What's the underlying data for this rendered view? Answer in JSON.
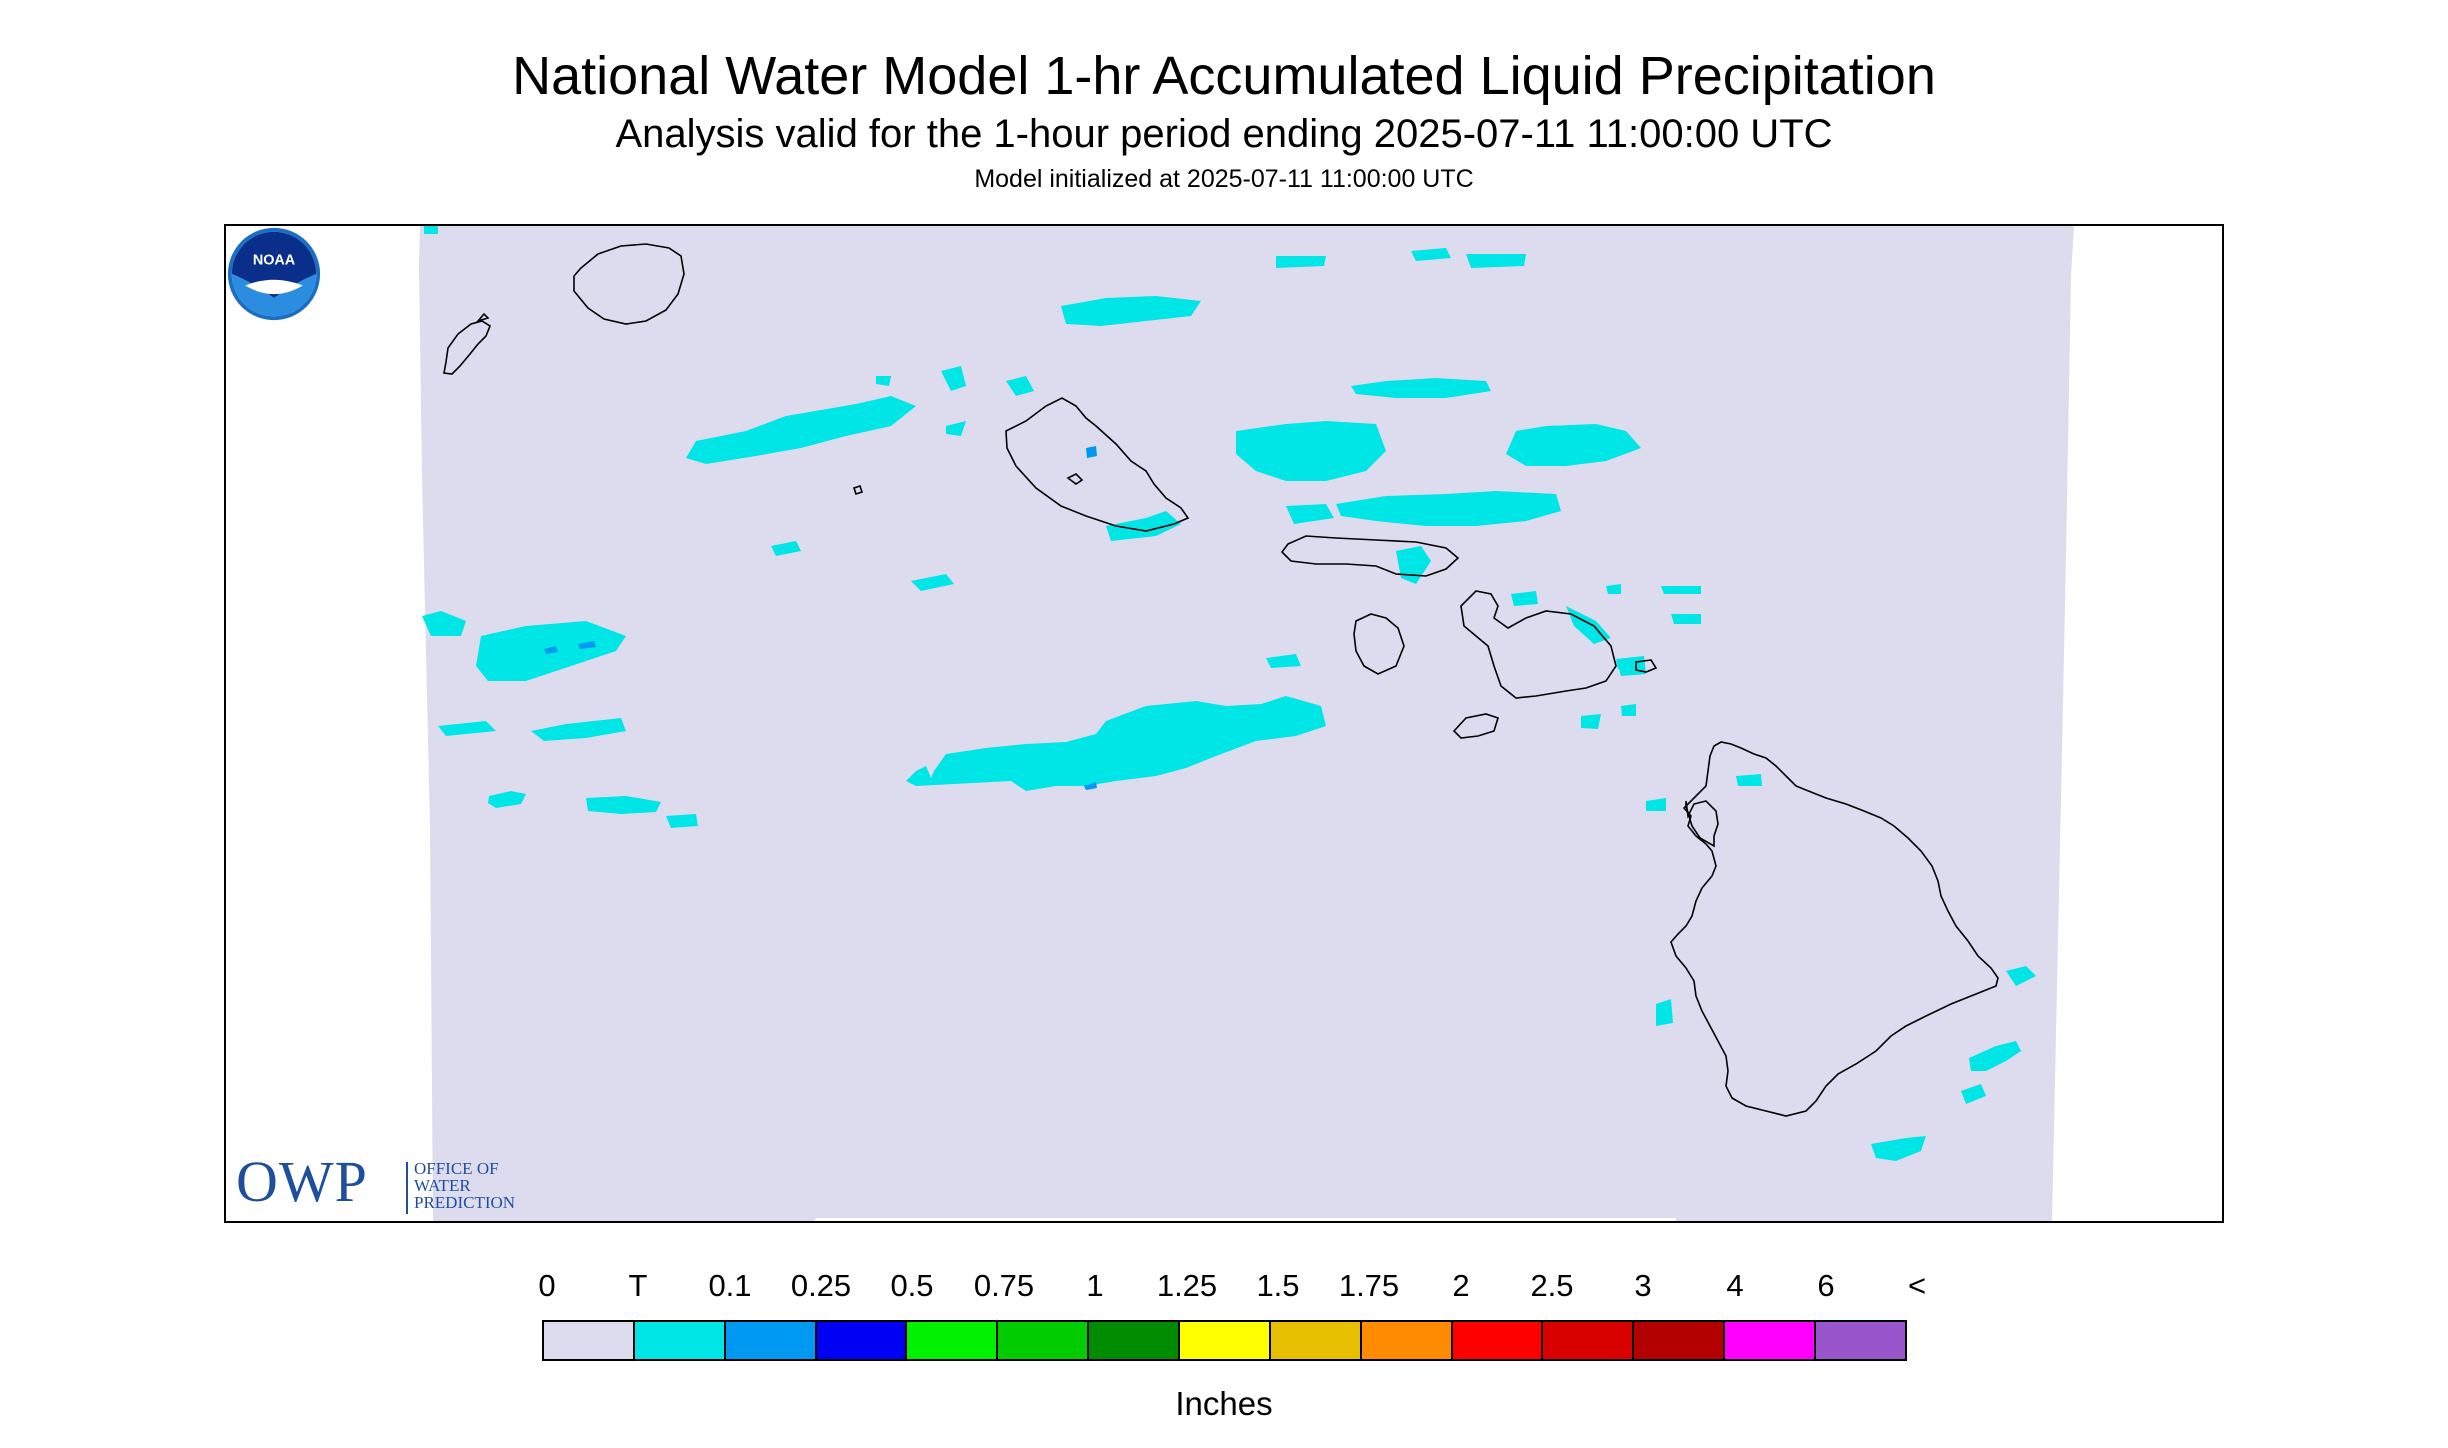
{
  "header": {
    "title": "National Water Model 1-hr Accumulated Liquid Precipitation",
    "subtitle": "Analysis valid for the 1-hour period ending 2025-07-11 11:00:00 UTC",
    "init_note": "Model initialized at 2025-07-11 11:00:00 UTC"
  },
  "map": {
    "region_background_color": "#dcdcee",
    "coastline_color": "#000000",
    "islands": [
      "Niihau",
      "Kauai",
      "Oahu",
      "Molokai",
      "Lanai",
      "Maui",
      "Kahoolawe",
      "Hawaii"
    ],
    "precip_classes_shown": [
      "T",
      "0.1"
    ]
  },
  "logos": {
    "owp": {
      "letters": "OWP",
      "line1": "OFFICE OF",
      "line2": "WATER",
      "line3": "PREDICTION",
      "color": "#1f4e9c"
    },
    "noaa": {
      "text": "NOAA",
      "color": "#1a6fc4"
    }
  },
  "legend": {
    "tick_labels": [
      "0",
      "T",
      "0.1",
      "0.25",
      "0.5",
      "0.75",
      "1",
      "1.25",
      "1.5",
      "1.75",
      "2",
      "2.5",
      "3",
      "4",
      "6",
      "<"
    ],
    "colors": [
      "#dcdcee",
      "#00e6e6",
      "#0099f2",
      "#0000f2",
      "#00f200",
      "#00cc00",
      "#008c00",
      "#ffff00",
      "#e6bf00",
      "#ff8c00",
      "#ff0000",
      "#d90000",
      "#b30000",
      "#ff00ff",
      "#9955cc"
    ],
    "units": "Inches"
  }
}
